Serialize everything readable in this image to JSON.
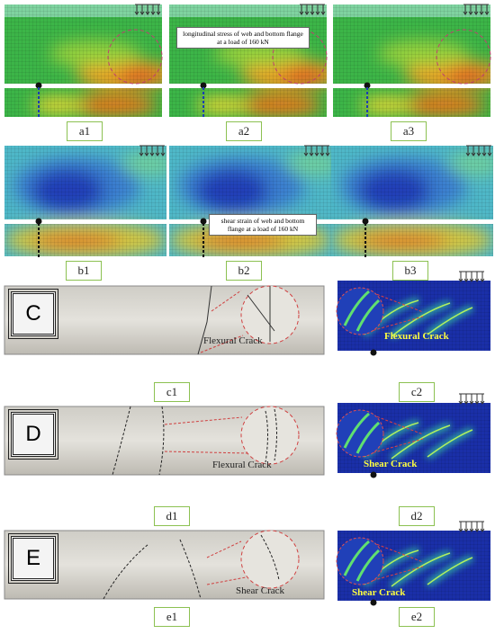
{
  "labels": {
    "a1": "a1",
    "a2": "a2",
    "a3": "a3",
    "b1": "b1",
    "b2": "b2",
    "b3": "b3",
    "c1": "c1",
    "c2": "c2",
    "d1": "d1",
    "d2": "d2",
    "e1": "e1",
    "e2": "e2"
  },
  "annotations": {
    "a2": "longitudinal stress of web and bottom flange at a load of 160 kN",
    "b2": "shear strain of web and bottom flange at a load of 160 kN"
  },
  "specimens": [
    {
      "id": "C",
      "photo_label": "Flexural Crack",
      "fe_label": "Flexural Crack"
    },
    {
      "id": "D",
      "photo_label": "Flexural Crack",
      "fe_label": "Shear Crack"
    },
    {
      "id": "E",
      "photo_label": "Shear Crack",
      "fe_label": "Shear Crack"
    }
  ]
}
